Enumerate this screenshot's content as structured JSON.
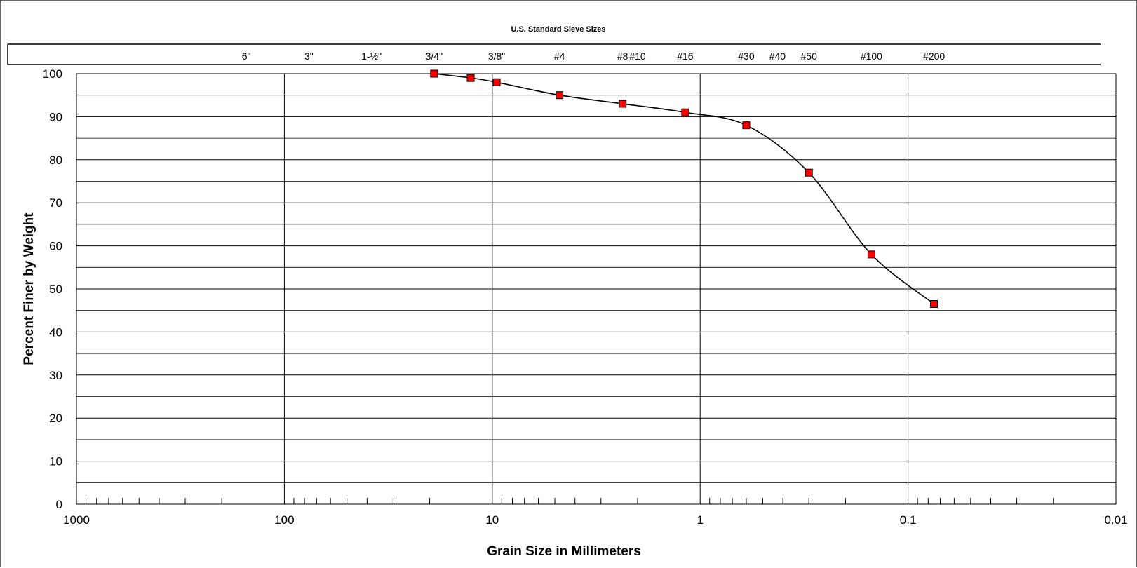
{
  "chart_data": {
    "type": "scatter",
    "top_title": "U.S. Standard Sieve Sizes",
    "xlabel": "Grain Size in Millimeters",
    "ylabel": "Percent Finer by Weight",
    "x_scale": "log",
    "x_reversed": true,
    "xlim": [
      1000,
      0.01
    ],
    "ylim": [
      0,
      100
    ],
    "x_tick_labels": [
      "1000",
      "100",
      "10",
      "1",
      "0.1",
      "0.01"
    ],
    "x_tick_values": [
      1000,
      100,
      10,
      1,
      0.1,
      0.01
    ],
    "y_tick_values": [
      0,
      10,
      20,
      30,
      40,
      50,
      60,
      70,
      80,
      90,
      100
    ],
    "y_minor_gridlines": [
      5,
      15,
      25,
      35,
      45,
      55,
      65,
      75,
      85,
      95
    ],
    "grid": true,
    "sieves": [
      {
        "label": "6\"",
        "size": 152.4
      },
      {
        "label": "3\"",
        "size": 76.2
      },
      {
        "label": "1-½\"",
        "size": 38.1
      },
      {
        "label": "3/4\"",
        "size": 19.05
      },
      {
        "label": "3/8\"",
        "size": 9.525
      },
      {
        "label": "#4",
        "size": 4.75
      },
      {
        "label": "#8",
        "size": 2.36
      },
      {
        "label": "#10",
        "size": 2.0
      },
      {
        "label": "#16",
        "size": 1.18
      },
      {
        "label": "#30",
        "size": 0.6
      },
      {
        "label": "#40",
        "size": 0.425
      },
      {
        "label": "#50",
        "size": 0.3
      },
      {
        "label": "#100",
        "size": 0.15
      },
      {
        "label": "#200",
        "size": 0.075
      }
    ],
    "series": [
      {
        "marker": "square",
        "marker_color": "#ff0000",
        "line_color": "#000000",
        "x": [
          19.05,
          12.7,
          9.525,
          4.75,
          2.36,
          1.18,
          0.6,
          0.3,
          0.15,
          0.075
        ],
        "y": [
          100,
          99,
          98,
          95,
          93,
          91,
          88,
          77,
          58,
          46.5
        ]
      }
    ]
  }
}
